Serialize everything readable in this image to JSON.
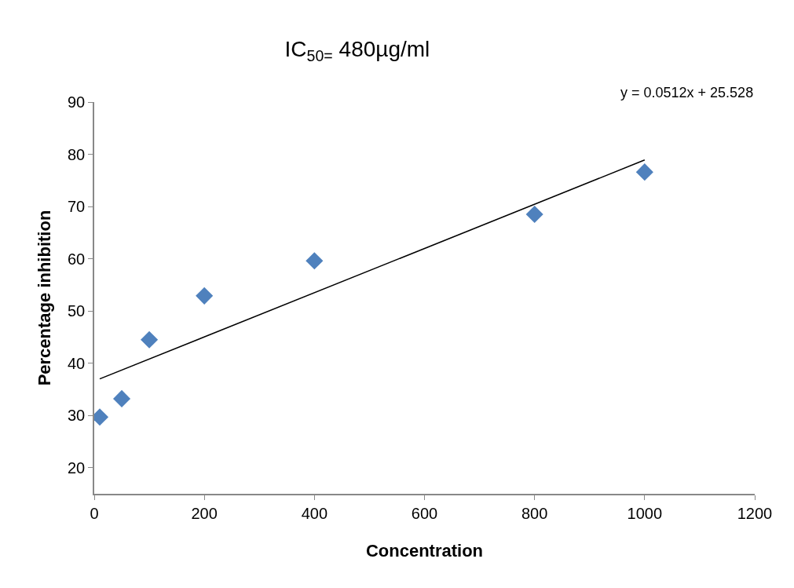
{
  "chart_data": {
    "type": "scatter",
    "title": "IC$_{50=}$ 480µg/ml",
    "xlabel": "Concentration",
    "ylabel": "Percentage inhibition",
    "x": [
      10,
      50,
      100,
      200,
      400,
      800,
      1000
    ],
    "series": [
      {
        "color": "#4f81bd",
        "marker": "diamond",
        "values": [
          29.7,
          33.2,
          44.5,
          52.9,
          59.6,
          68.5,
          76.6
        ]
      },
      {
        "type": "line",
        "color": "#000000",
        "marker": "none",
        "line_style": "solid",
        "x": [
          10,
          1000
        ],
        "values": [
          37.0,
          78.9
        ]
      }
    ],
    "annotations": [
      "y = 0.0512x + 25.528"
    ],
    "xlim": [
      0,
      1200
    ],
    "xticks": [
      0,
      200,
      400,
      600,
      800,
      1000,
      1200
    ],
    "ylim": [
      15,
      90
    ],
    "yticks": [
      20,
      30,
      40,
      50,
      60,
      70,
      80,
      90
    ]
  }
}
